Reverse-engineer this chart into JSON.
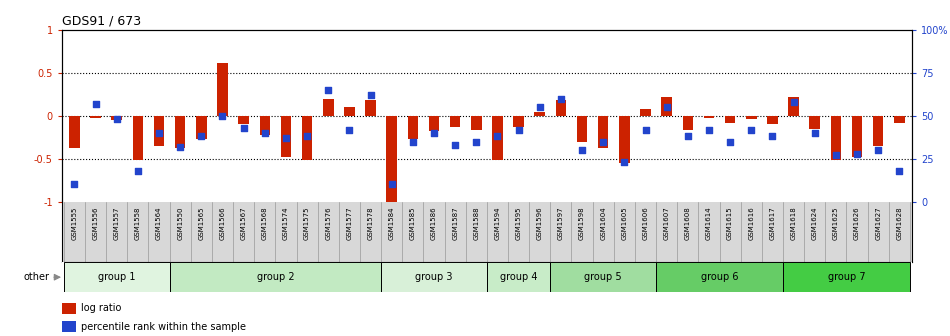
{
  "title": "GDS91 / 673",
  "samples": [
    "GSM1555",
    "GSM1556",
    "GSM1557",
    "GSM1558",
    "GSM1564",
    "GSM1550",
    "GSM1565",
    "GSM1566",
    "GSM1567",
    "GSM1568",
    "GSM1574",
    "GSM1575",
    "GSM1576",
    "GSM1577",
    "GSM1578",
    "GSM1584",
    "GSM1585",
    "GSM1586",
    "GSM1587",
    "GSM1588",
    "GSM1594",
    "GSM1595",
    "GSM1596",
    "GSM1597",
    "GSM1598",
    "GSM1604",
    "GSM1605",
    "GSM1606",
    "GSM1607",
    "GSM1608",
    "GSM1614",
    "GSM1615",
    "GSM1616",
    "GSM1617",
    "GSM1618",
    "GSM1624",
    "GSM1625",
    "GSM1626",
    "GSM1627",
    "GSM1628"
  ],
  "log_ratio": [
    -0.37,
    -0.03,
    -0.05,
    -0.52,
    -0.35,
    -0.38,
    -0.27,
    0.62,
    -0.1,
    -0.22,
    -0.48,
    -0.51,
    0.2,
    0.1,
    0.18,
    -1.02,
    -0.27,
    -0.18,
    -0.13,
    -0.17,
    -0.52,
    -0.13,
    0.05,
    0.18,
    -0.3,
    -0.38,
    -0.55,
    0.08,
    0.22,
    -0.17,
    -0.03,
    -0.08,
    -0.04,
    -0.1,
    0.22,
    -0.15,
    -0.52,
    -0.48,
    -0.35,
    -0.08
  ],
  "percentile": [
    10,
    57,
    48,
    18,
    40,
    32,
    38,
    50,
    43,
    40,
    37,
    38,
    65,
    42,
    62,
    10,
    35,
    40,
    33,
    35,
    38,
    42,
    55,
    60,
    30,
    35,
    23,
    42,
    55,
    38,
    42,
    35,
    42,
    38,
    58,
    40,
    27,
    28,
    30,
    18
  ],
  "groups": [
    {
      "name": "group 1",
      "start": 0,
      "end": 5,
      "color": "#e0f4e0"
    },
    {
      "name": "group 2",
      "start": 5,
      "end": 15,
      "color": "#c2eac2"
    },
    {
      "name": "group 3",
      "start": 15,
      "end": 20,
      "color": "#d8f0d8"
    },
    {
      "name": "group 4",
      "start": 20,
      "end": 23,
      "color": "#c8ecc8"
    },
    {
      "name": "group 5",
      "start": 23,
      "end": 28,
      "color": "#a0dda0"
    },
    {
      "name": "group 6",
      "start": 28,
      "end": 34,
      "color": "#66cc66"
    },
    {
      "name": "group 7",
      "start": 34,
      "end": 40,
      "color": "#44cc44"
    }
  ],
  "bar_color": "#cc2200",
  "dot_color": "#2244cc",
  "ylim_left": [
    -1.0,
    1.0
  ],
  "ylim_right": [
    0,
    100
  ],
  "yticks_left": [
    -1,
    -0.5,
    0,
    0.5,
    1
  ],
  "yticks_right": [
    0,
    25,
    50,
    75,
    100
  ],
  "yticklabels_right": [
    "0",
    "25",
    "50",
    "75",
    "100%"
  ],
  "dotted_lines": [
    -0.5,
    0.0,
    0.5
  ],
  "background_color": "#ffffff",
  "ticklabel_bg": "#d8d8d8"
}
